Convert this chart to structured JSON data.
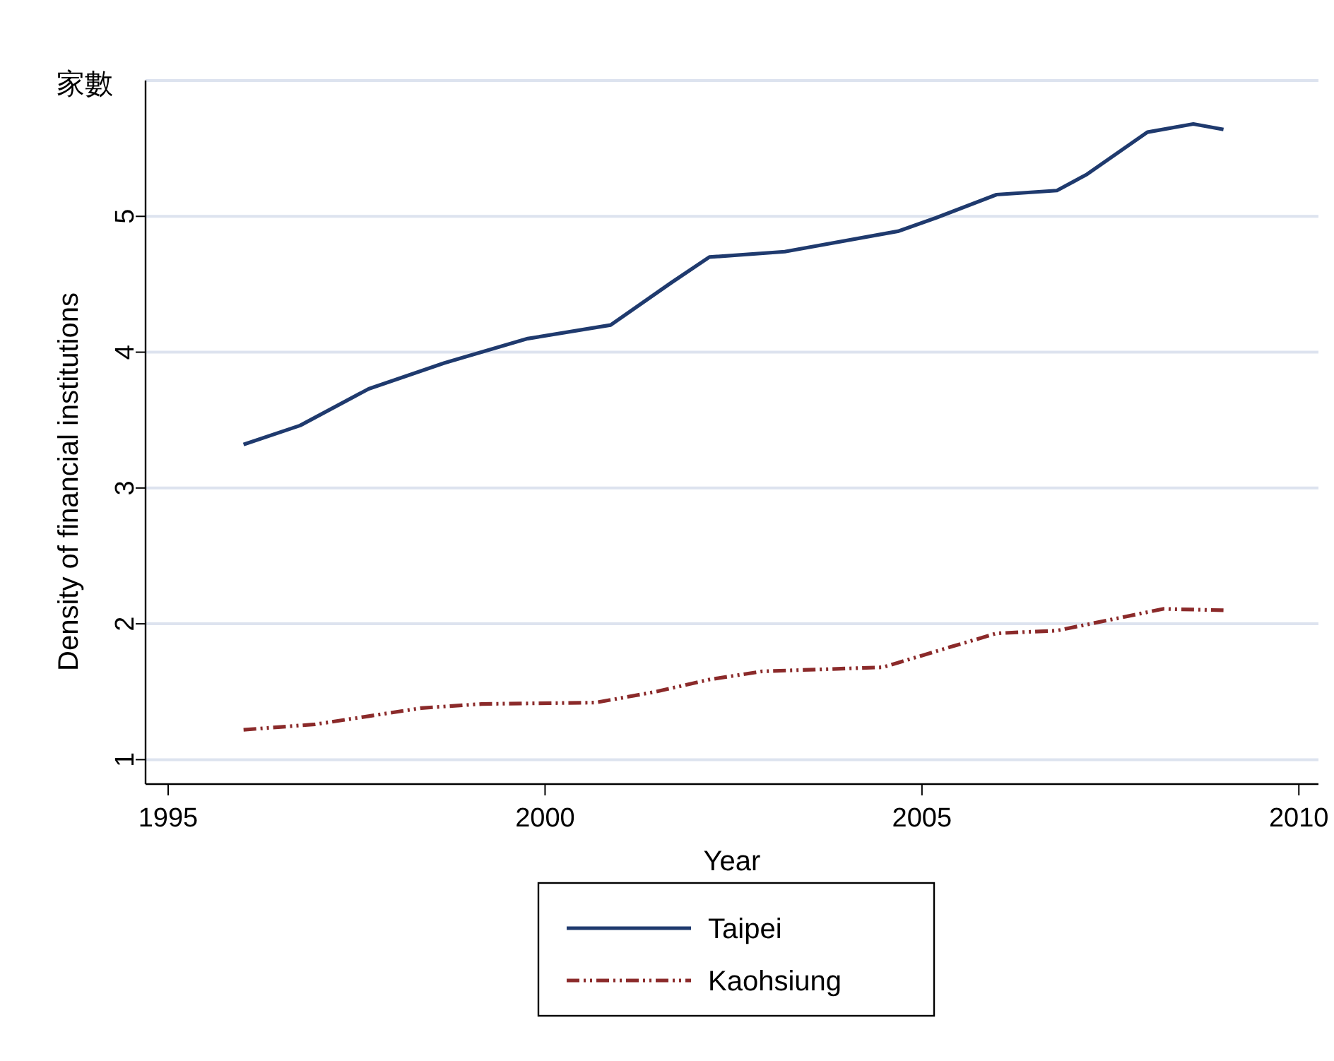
{
  "chart_data": {
    "type": "line",
    "title": "家數",
    "xlabel": "Year",
    "ylabel": "Density of financial institutions",
    "xlim": [
      1994.7,
      2010.26
    ],
    "ylim": [
      0.82,
      6
    ],
    "xticks": [
      1995,
      2000,
      2005,
      2010
    ],
    "yticks": [
      1,
      2,
      3,
      4,
      5,
      {
        "value": 6,
        "label": null
      }
    ],
    "grid": "y",
    "legend": "bottom",
    "series": [
      {
        "name": "Taipei",
        "color": "#1f3a6e",
        "line_style": "solid",
        "x": [
          1996.0,
          1996.75,
          1997.66,
          1998.66,
          1999.77,
          2000.87,
          2001.67,
          2002.18,
          2003.18,
          2004.68,
          2005.19,
          2005.99,
          2006.79,
          2007.19,
          2007.99,
          2008.6,
          2009.0
        ],
        "values": [
          3.32,
          3.46,
          3.73,
          3.92,
          4.1,
          4.2,
          4.51,
          4.7,
          4.74,
          4.89,
          4.99,
          5.16,
          5.19,
          5.31,
          5.62,
          5.68,
          5.64
        ]
      },
      {
        "name": "Kaohsiung",
        "color": "#8b2a2a",
        "line_style": "dashed",
        "x": [
          1996.0,
          1996.95,
          1997.66,
          1998.36,
          1999.16,
          2000.67,
          2001.47,
          2002.18,
          2002.88,
          2004.48,
          2005.38,
          2005.99,
          2006.79,
          2007.59,
          2008.2,
          2009.0
        ],
        "values": [
          1.22,
          1.26,
          1.32,
          1.38,
          1.41,
          1.42,
          1.5,
          1.59,
          1.65,
          1.68,
          1.83,
          1.93,
          1.95,
          2.04,
          2.11,
          2.1
        ]
      }
    ]
  }
}
